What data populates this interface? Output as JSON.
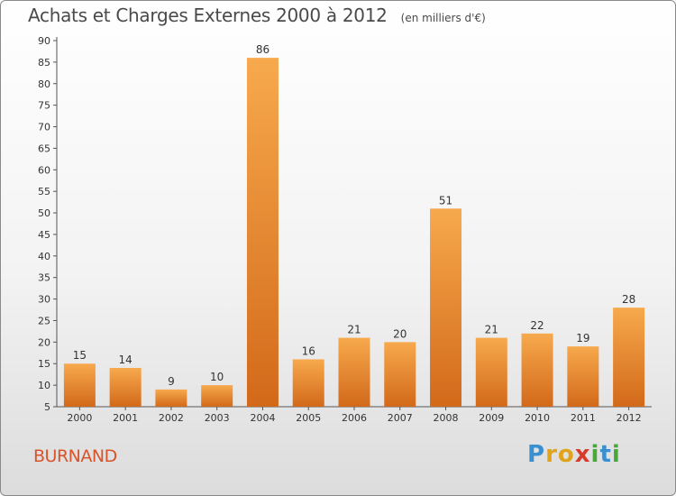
{
  "title": "Achats et Charges Externes 2000 à 2012",
  "unit_note": "(en milliers d'€)",
  "commune": "BURNAND",
  "logo": {
    "letters": [
      "P",
      "r",
      "o",
      "x",
      "i",
      "t",
      "i"
    ],
    "colors": [
      "#3a8fd1",
      "#e0a31a",
      "#e0a31a",
      "#d93a2b",
      "#4aa83a",
      "#3a8fd1",
      "#4aa83a"
    ]
  },
  "colors": {
    "bar_light": "#f7a94d",
    "bar_dark": "#d2691a",
    "title": "#4a4a4a",
    "commune": "#d9532b"
  },
  "chart_data": {
    "type": "bar",
    "categories": [
      "2000",
      "2001",
      "2002",
      "2003",
      "2004",
      "2005",
      "2006",
      "2007",
      "2008",
      "2009",
      "2010",
      "2011",
      "2012"
    ],
    "values": [
      15,
      14,
      9,
      10,
      86,
      16,
      21,
      20,
      51,
      21,
      22,
      19,
      28
    ],
    "title": "Achats et Charges Externes 2000 à 2012",
    "xlabel": "",
    "ylabel": "",
    "ylim": [
      5,
      90
    ],
    "yticks": [
      5,
      10,
      15,
      20,
      25,
      30,
      35,
      40,
      45,
      50,
      55,
      60,
      65,
      70,
      75,
      80,
      85,
      90
    ],
    "grid": false,
    "legend": "none"
  }
}
